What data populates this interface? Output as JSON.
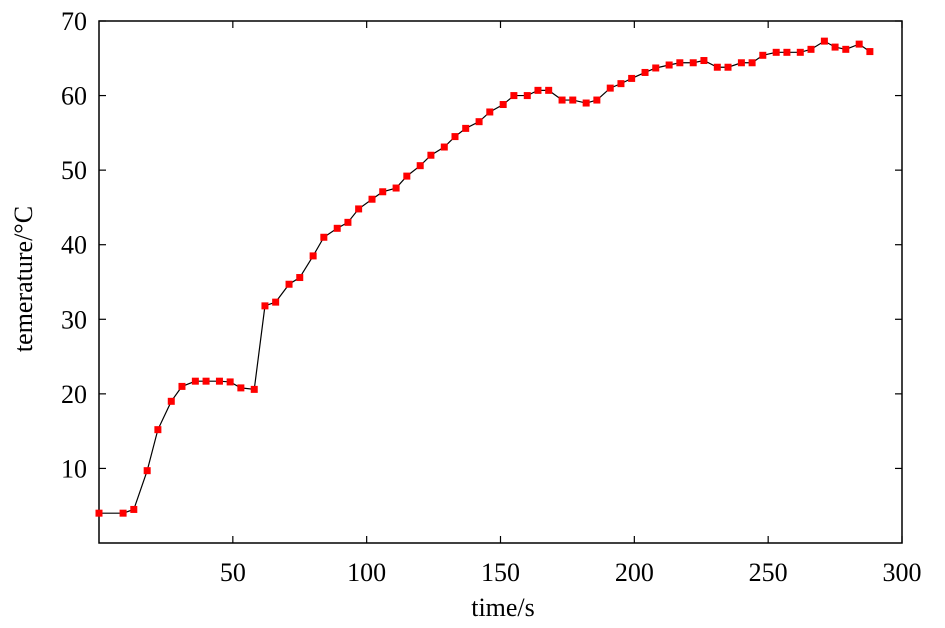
{
  "chart_data": {
    "type": "line",
    "title": "",
    "xlabel": "time/s",
    "ylabel": "temerature/°C",
    "xlim": [
      0,
      300
    ],
    "ylim": [
      0,
      70
    ],
    "xticks": [
      50,
      100,
      150,
      200,
      250,
      300
    ],
    "yticks": [
      10,
      20,
      30,
      40,
      50,
      60,
      70
    ],
    "grid": false,
    "legend": "none",
    "line_color": "#000000",
    "marker_color": "#ff0000",
    "marker": "square",
    "series": [
      {
        "x": [
          0,
          9,
          13,
          18,
          22,
          27,
          31,
          36,
          40,
          45,
          49,
          53,
          58,
          62,
          66,
          71,
          75,
          80,
          84,
          89,
          93,
          97,
          102,
          106,
          111,
          115,
          120,
          124,
          129,
          133,
          137,
          142,
          146,
          151,
          155,
          160,
          164,
          168,
          173,
          177,
          182,
          186,
          191,
          195,
          199,
          204,
          208,
          213,
          217,
          222,
          226,
          231,
          235,
          240,
          244,
          248,
          253,
          257,
          262,
          266,
          271,
          275,
          279,
          284,
          288
        ],
        "y": [
          4.0,
          4.0,
          4.5,
          9.7,
          15.2,
          19.0,
          21.0,
          21.7,
          21.7,
          21.7,
          21.6,
          20.8,
          20.6,
          31.8,
          32.3,
          34.7,
          35.6,
          38.5,
          41.0,
          42.2,
          43.0,
          44.8,
          46.1,
          47.1,
          47.6,
          49.2,
          50.6,
          52.0,
          53.1,
          54.5,
          55.6,
          56.5,
          57.8,
          58.8,
          60.0,
          60.0,
          60.7,
          60.7,
          59.4,
          59.4,
          59.0,
          59.4,
          61.0,
          61.6,
          62.3,
          63.1,
          63.7,
          64.1,
          64.4,
          64.4,
          64.7,
          63.8,
          63.8,
          64.4,
          64.4,
          65.4,
          65.8,
          65.8,
          65.8,
          66.2,
          67.3,
          66.5,
          66.2,
          66.9,
          65.9
        ]
      }
    ]
  }
}
